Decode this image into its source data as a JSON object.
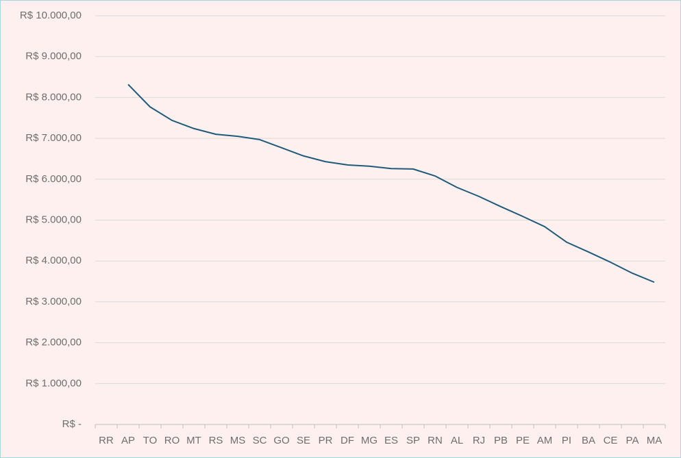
{
  "chart_data": {
    "type": "line",
    "categories": [
      "RR",
      "AP",
      "TO",
      "RO",
      "MT",
      "RS",
      "MS",
      "SC",
      "GO",
      "SE",
      "PR",
      "DF",
      "MG",
      "ES",
      "SP",
      "RN",
      "AL",
      "RJ",
      "PB",
      "PE",
      "AM",
      "PI",
      "BA",
      "CE",
      "PA",
      "MA"
    ],
    "series": [
      {
        "color": "#1f5a7a",
        "values": [
          null,
          8320,
          7770,
          7440,
          7240,
          7100,
          7050,
          6970,
          6770,
          6570,
          6430,
          6350,
          6320,
          6260,
          6250,
          6080,
          5800,
          5580,
          5330,
          5090,
          4840,
          4460,
          4220,
          3970,
          3700,
          3480
        ]
      }
    ],
    "ylim": [
      0,
      10000
    ],
    "yticks": [
      {
        "value": 0,
        "label": "R$ -"
      },
      {
        "value": 1000,
        "label": "R$ 1.000,00"
      },
      {
        "value": 2000,
        "label": "R$ 2.000,00"
      },
      {
        "value": 3000,
        "label": "R$ 3.000,00"
      },
      {
        "value": 4000,
        "label": "R$ 4.000,00"
      },
      {
        "value": 5000,
        "label": "R$ 5.000,00"
      },
      {
        "value": 6000,
        "label": "R$ 6.000,00"
      },
      {
        "value": 7000,
        "label": "R$ 7.000,00"
      },
      {
        "value": 8000,
        "label": "R$ 8.000,00"
      },
      {
        "value": 9000,
        "label": "R$ 9.000,00"
      },
      {
        "value": 10000,
        "label": "R$ 10.000,00"
      }
    ],
    "grid": true
  }
}
